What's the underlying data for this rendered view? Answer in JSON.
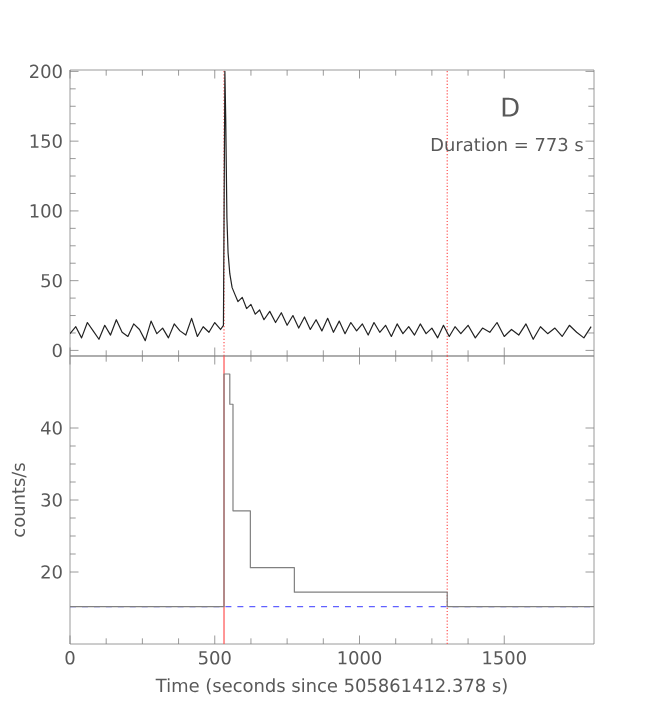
{
  "chart_data": [
    {
      "type": "line",
      "annotations": [
        "D",
        "Duration = 773 s"
      ],
      "series": [
        {
          "color": "#222222",
          "x": [
            0,
            20,
            40,
            60,
            80,
            100,
            120,
            140,
            160,
            180,
            200,
            220,
            240,
            260,
            280,
            300,
            320,
            340,
            360,
            380,
            400,
            420,
            440,
            460,
            480,
            500,
            520,
            530,
            535,
            538,
            542,
            546,
            552,
            560,
            570,
            580,
            595,
            610,
            625,
            640,
            655,
            670,
            690,
            710,
            730,
            750,
            770,
            790,
            810,
            830,
            850,
            870,
            890,
            910,
            930,
            950,
            970,
            990,
            1010,
            1030,
            1050,
            1070,
            1090,
            1110,
            1130,
            1150,
            1170,
            1190,
            1210,
            1230,
            1250,
            1270,
            1290,
            1310,
            1330,
            1350,
            1375,
            1400,
            1425,
            1450,
            1475,
            1500,
            1525,
            1550,
            1575,
            1600,
            1625,
            1650,
            1675,
            1700,
            1725,
            1750,
            1775,
            1800
          ],
          "values": [
            12,
            17,
            9,
            20,
            14,
            8,
            18,
            11,
            22,
            13,
            10,
            19,
            15,
            7,
            21,
            12,
            16,
            9,
            19,
            14,
            11,
            23,
            10,
            17,
            13,
            20,
            15,
            18,
            200,
            165,
            95,
            70,
            55,
            45,
            40,
            35,
            38,
            30,
            33,
            26,
            29,
            22,
            28,
            20,
            27,
            18,
            25,
            16,
            24,
            15,
            22,
            14,
            23,
            13,
            21,
            12,
            20,
            14,
            19,
            11,
            20,
            13,
            18,
            10,
            19,
            12,
            17,
            11,
            19,
            12,
            16,
            9,
            18,
            10,
            17,
            12,
            18,
            9,
            16,
            13,
            20,
            10,
            15,
            11,
            19,
            8,
            17,
            12,
            16,
            10,
            18,
            13,
            9,
            17
          ]
        }
      ],
      "xlim": [
        0,
        1810
      ],
      "xticks": [
        0,
        500,
        1000,
        1500
      ],
      "ylim": [
        -4,
        201
      ],
      "yticks": [
        0,
        50,
        100,
        150,
        200
      ],
      "tick_labels": "y",
      "ref_lines": [
        {
          "axis": "x",
          "value": 532,
          "color": "#ff5050",
          "line_style": "dotted"
        },
        {
          "axis": "x",
          "value": 1303,
          "color": "#ff5050",
          "line_style": "dotted"
        }
      ]
    },
    {
      "type": "step",
      "xlabel": "Time (seconds since 505861412.378 s)",
      "ylabel": "counts/s",
      "series": [
        {
          "color": "#808080",
          "x": [
            0,
            532,
            552,
            563,
            623,
            775,
            1303,
            1810
          ],
          "values": [
            15.2,
            47.5,
            43.3,
            28.5,
            20.6,
            17.2,
            15.2,
            15.2
          ]
        }
      ],
      "xlim": [
        0,
        1810
      ],
      "xticks": [
        0,
        500,
        1000,
        1500
      ],
      "ylim": [
        10,
        50
      ],
      "yticks": [
        20,
        30,
        40
      ],
      "ref_lines": [
        {
          "axis": "x",
          "value": 532,
          "color": "#ff5050",
          "line_style": "solid"
        },
        {
          "axis": "x",
          "value": 1303,
          "color": "#ff5050",
          "line_style": "dotted"
        },
        {
          "axis": "y",
          "value": 15.2,
          "color": "#6060ff",
          "line_style": "dashed"
        }
      ]
    }
  ]
}
